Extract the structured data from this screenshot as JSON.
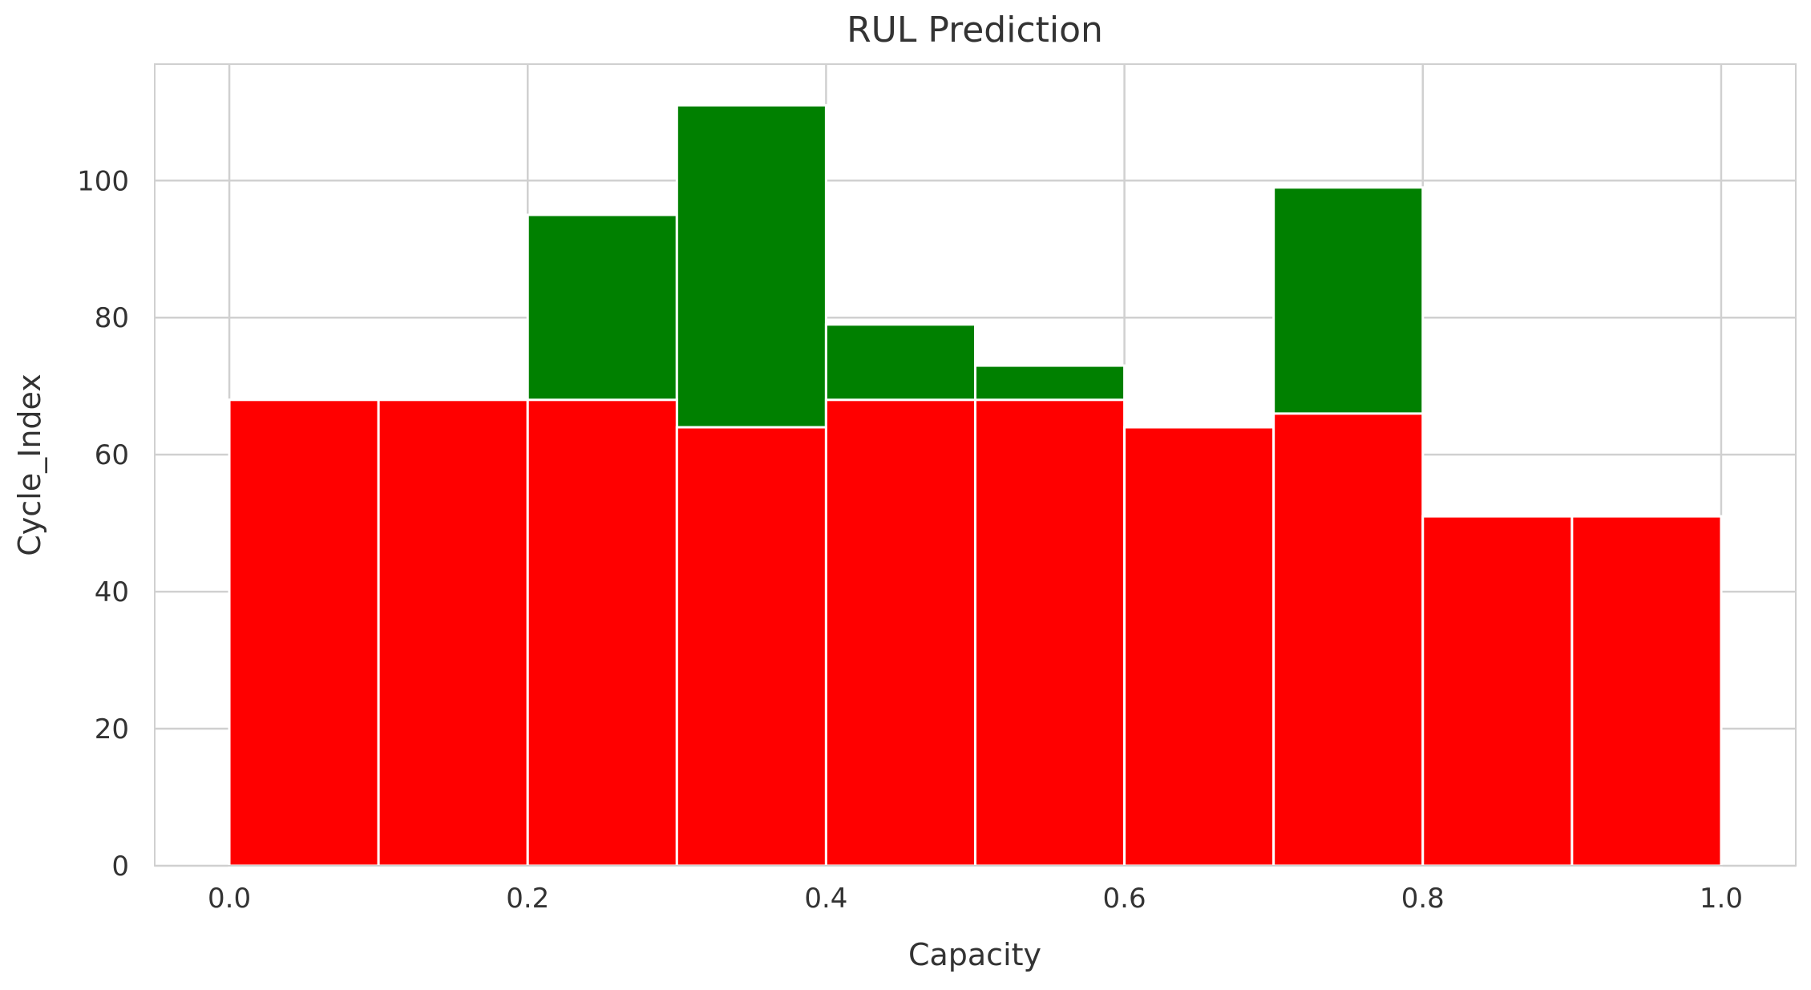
{
  "chart_data": {
    "type": "bar",
    "title": "RUL Prediction",
    "xlabel": "Capacity",
    "ylabel": "Cycle_Index",
    "xlim": [
      -0.05,
      1.05
    ],
    "ylim": [
      0,
      117
    ],
    "grid": true,
    "x_ticks": [
      "0.0",
      "0.2",
      "0.4",
      "0.6",
      "0.8",
      "1.0"
    ],
    "y_ticks": [
      "0",
      "20",
      "40",
      "60",
      "80",
      "100"
    ],
    "bin_edges": [
      0.0,
      0.1,
      0.2,
      0.3,
      0.4,
      0.5,
      0.6,
      0.7,
      0.8,
      0.9,
      1.0
    ],
    "series": [
      {
        "color": "#008000",
        "values": [
          68,
          68,
          95,
          111,
          79,
          73,
          64,
          99,
          51,
          51
        ]
      },
      {
        "color": "#ff0000",
        "values": [
          68,
          68,
          68,
          64,
          68,
          68,
          64,
          66,
          51,
          51
        ]
      }
    ],
    "axes_edge_color": "#d0d0d0",
    "grid_color": "#d0d0d0"
  }
}
